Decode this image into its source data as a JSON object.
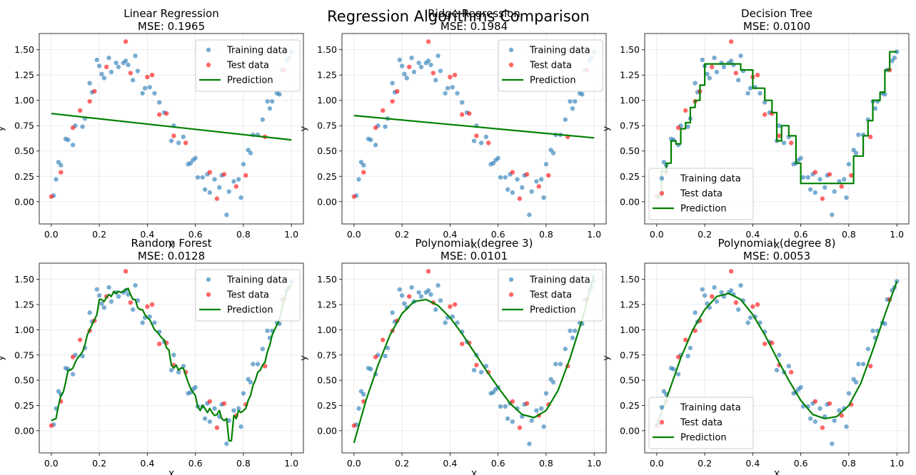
{
  "figure": {
    "suptitle": "Regression Algorithms Comparison"
  },
  "style": {
    "train_color": "#1f77b4",
    "test_color": "#ff0000",
    "pred_color": "#008000",
    "grid_color": "#e6e6e6"
  },
  "legend_labels": [
    "Training data",
    "Test data",
    "Prediction"
  ],
  "chart_data": [
    {
      "type": "scatter",
      "title": "Linear Regression",
      "subtitle": "MSE: 0.1965",
      "xlabel": "X",
      "ylabel": "y",
      "xlim": [
        -0.05,
        1.05
      ],
      "ylim": [
        -0.22,
        1.66
      ],
      "xticks": [
        "0.0",
        "0.2",
        "0.4",
        "0.6",
        "0.8",
        "1.0"
      ],
      "yticks": [
        "0.00",
        "0.25",
        "0.50",
        "0.75",
        "1.00",
        "1.25",
        "1.50"
      ],
      "grid": true,
      "legend": "upper right",
      "model": "linear",
      "prediction": {
        "x": [
          0.0,
          1.0
        ],
        "y": [
          0.87,
          0.61
        ]
      }
    },
    {
      "type": "scatter",
      "title": "Ridge Regression",
      "subtitle": "MSE: 0.1984",
      "xlabel": "X",
      "ylabel": "y",
      "xlim": [
        -0.05,
        1.05
      ],
      "ylim": [
        -0.22,
        1.66
      ],
      "xticks": [
        "0.0",
        "0.2",
        "0.4",
        "0.6",
        "0.8",
        "1.0"
      ],
      "yticks": [
        "0.00",
        "0.25",
        "0.50",
        "0.75",
        "1.00",
        "1.25",
        "1.50"
      ],
      "grid": true,
      "legend": "upper right",
      "model": "linear",
      "prediction": {
        "x": [
          0.0,
          1.0
        ],
        "y": [
          0.85,
          0.63
        ]
      }
    },
    {
      "type": "scatter",
      "title": "Decision Tree",
      "subtitle": "MSE: 0.0100",
      "xlabel": "X",
      "ylabel": "y",
      "xlim": [
        -0.05,
        1.05
      ],
      "ylim": [
        -0.22,
        1.66
      ],
      "xticks": [
        "0.0",
        "0.2",
        "0.4",
        "0.6",
        "0.8",
        "1.0"
      ],
      "yticks": [
        "0.00",
        "0.25",
        "0.50",
        "0.75",
        "1.00",
        "1.25",
        "1.50"
      ],
      "grid": true,
      "legend": "lower left",
      "model": "tree",
      "prediction": {
        "x": [
          0.0,
          0.02,
          0.02,
          0.04,
          0.04,
          0.06,
          0.06,
          0.08,
          0.08,
          0.1,
          0.1,
          0.12,
          0.12,
          0.14,
          0.14,
          0.16,
          0.16,
          0.18,
          0.18,
          0.2,
          0.2,
          0.35,
          0.35,
          0.4,
          0.4,
          0.45,
          0.45,
          0.48,
          0.48,
          0.5,
          0.5,
          0.52,
          0.52,
          0.55,
          0.55,
          0.58,
          0.58,
          0.6,
          0.6,
          0.82,
          0.82,
          0.86,
          0.86,
          0.88,
          0.88,
          0.9,
          0.9,
          0.93,
          0.93,
          0.95,
          0.95,
          0.97,
          0.97,
          1.0
        ],
        "y": [
          0.05,
          0.05,
          0.3,
          0.3,
          0.38,
          0.38,
          0.6,
          0.6,
          0.57,
          0.57,
          0.72,
          0.72,
          0.78,
          0.78,
          0.93,
          0.93,
          1.0,
          1.0,
          1.15,
          1.15,
          1.36,
          1.36,
          1.3,
          1.3,
          1.12,
          1.12,
          1.0,
          1.0,
          0.88,
          0.88,
          0.6,
          0.6,
          0.75,
          0.75,
          0.65,
          0.65,
          0.38,
          0.38,
          0.18,
          0.18,
          0.45,
          0.45,
          0.65,
          0.65,
          0.8,
          0.8,
          1.0,
          1.0,
          1.08,
          1.08,
          1.3,
          1.3,
          1.48,
          1.48
        ]
      }
    },
    {
      "type": "scatter",
      "title": "Random Forest",
      "subtitle": "MSE: 0.0128",
      "xlabel": "X",
      "ylabel": "y",
      "xlim": [
        -0.05,
        1.05
      ],
      "ylim": [
        -0.22,
        1.66
      ],
      "xticks": [
        "0.0",
        "0.2",
        "0.4",
        "0.6",
        "0.8",
        "1.0"
      ],
      "yticks": [
        "0.00",
        "0.25",
        "0.50",
        "0.75",
        "1.00",
        "1.25",
        "1.50"
      ],
      "grid": true,
      "legend": "upper right",
      "model": "forest",
      "prediction": {
        "x": [
          0.0,
          0.02,
          0.03,
          0.04,
          0.05,
          0.06,
          0.07,
          0.08,
          0.09,
          0.1,
          0.11,
          0.12,
          0.13,
          0.14,
          0.15,
          0.16,
          0.17,
          0.18,
          0.19,
          0.2,
          0.21,
          0.22,
          0.23,
          0.24,
          0.25,
          0.26,
          0.27,
          0.28,
          0.29,
          0.3,
          0.31,
          0.32,
          0.33,
          0.34,
          0.35,
          0.36,
          0.37,
          0.38,
          0.39,
          0.4,
          0.41,
          0.42,
          0.43,
          0.44,
          0.45,
          0.46,
          0.47,
          0.48,
          0.49,
          0.5,
          0.51,
          0.52,
          0.53,
          0.54,
          0.55,
          0.56,
          0.57,
          0.58,
          0.59,
          0.6,
          0.61,
          0.62,
          0.63,
          0.64,
          0.65,
          0.66,
          0.67,
          0.68,
          0.69,
          0.7,
          0.71,
          0.72,
          0.73,
          0.74,
          0.75,
          0.76,
          0.77,
          0.78,
          0.79,
          0.8,
          0.81,
          0.82,
          0.83,
          0.84,
          0.85,
          0.86,
          0.87,
          0.88,
          0.89,
          0.9,
          0.91,
          0.92,
          0.93,
          0.94,
          0.95,
          0.96,
          0.97,
          0.98,
          0.99,
          1.0
        ],
        "y": [
          0.1,
          0.12,
          0.25,
          0.35,
          0.38,
          0.48,
          0.6,
          0.6,
          0.62,
          0.68,
          0.72,
          0.75,
          0.78,
          0.85,
          0.95,
          1.0,
          1.05,
          1.1,
          1.15,
          1.3,
          1.3,
          1.28,
          1.32,
          1.35,
          1.33,
          1.38,
          1.36,
          1.38,
          1.37,
          1.38,
          1.4,
          1.41,
          1.35,
          1.3,
          1.3,
          1.22,
          1.2,
          1.2,
          1.15,
          1.12,
          1.1,
          1.05,
          1.0,
          0.98,
          0.95,
          0.92,
          0.9,
          0.82,
          0.8,
          0.65,
          0.62,
          0.65,
          0.6,
          0.62,
          0.62,
          0.55,
          0.48,
          0.42,
          0.38,
          0.35,
          0.24,
          0.2,
          0.25,
          0.22,
          0.18,
          0.22,
          0.18,
          0.15,
          0.16,
          0.2,
          0.12,
          0.1,
          0.12,
          -0.1,
          -0.1,
          0.15,
          0.12,
          0.2,
          0.18,
          0.2,
          0.22,
          0.3,
          0.35,
          0.45,
          0.5,
          0.58,
          0.6,
          0.65,
          0.68,
          0.78,
          0.85,
          0.95,
          1.0,
          1.05,
          1.1,
          1.2,
          1.3,
          1.38,
          1.42,
          1.45
        ]
      }
    },
    {
      "type": "scatter",
      "title": "Polynomial (degree 3)",
      "subtitle": "MSE: 0.0101",
      "xlabel": "X",
      "ylabel": "y",
      "xlim": [
        -0.05,
        1.05
      ],
      "ylim": [
        -0.22,
        1.66
      ],
      "xticks": [
        "0.0",
        "0.2",
        "0.4",
        "0.6",
        "0.8",
        "1.0"
      ],
      "yticks": [
        "0.00",
        "0.25",
        "0.50",
        "0.75",
        "1.00",
        "1.25",
        "1.50"
      ],
      "grid": true,
      "legend": "upper right",
      "model": "poly3",
      "prediction": {
        "x": [
          0.0,
          0.05,
          0.1,
          0.15,
          0.2,
          0.25,
          0.3,
          0.35,
          0.4,
          0.45,
          0.5,
          0.55,
          0.6,
          0.65,
          0.7,
          0.75,
          0.8,
          0.85,
          0.9,
          0.95,
          1.0
        ],
        "y": [
          -0.12,
          0.3,
          0.65,
          0.95,
          1.16,
          1.28,
          1.3,
          1.24,
          1.12,
          0.96,
          0.78,
          0.6,
          0.43,
          0.27,
          0.16,
          0.13,
          0.2,
          0.4,
          0.72,
          1.1,
          1.55
        ]
      }
    },
    {
      "type": "scatter",
      "title": "Polynomial (degree 8)",
      "subtitle": "MSE: 0.0053",
      "xlabel": "X",
      "ylabel": "y",
      "xlim": [
        -0.05,
        1.05
      ],
      "ylim": [
        -0.22,
        1.66
      ],
      "xticks": [
        "0.0",
        "0.2",
        "0.4",
        "0.6",
        "0.8",
        "1.0"
      ],
      "yticks": [
        "0.00",
        "0.25",
        "0.50",
        "0.75",
        "1.00",
        "1.25",
        "1.50"
      ],
      "grid": true,
      "legend": "lower left",
      "model": "poly8",
      "prediction": {
        "x": [
          0.0,
          0.05,
          0.1,
          0.15,
          0.2,
          0.25,
          0.3,
          0.35,
          0.4,
          0.45,
          0.5,
          0.55,
          0.6,
          0.65,
          0.7,
          0.75,
          0.8,
          0.85,
          0.9,
          0.95,
          1.0
        ],
        "y": [
          0.05,
          0.38,
          0.72,
          1.0,
          1.2,
          1.33,
          1.36,
          1.3,
          1.15,
          0.95,
          0.72,
          0.5,
          0.3,
          0.16,
          0.12,
          0.14,
          0.25,
          0.47,
          0.8,
          1.15,
          1.48
        ]
      }
    }
  ],
  "train_data": {
    "x": [
      0.01,
      0.02,
      0.03,
      0.04,
      0.06,
      0.07,
      0.09,
      0.1,
      0.13,
      0.14,
      0.16,
      0.17,
      0.19,
      0.2,
      0.21,
      0.22,
      0.24,
      0.25,
      0.27,
      0.28,
      0.3,
      0.31,
      0.32,
      0.34,
      0.35,
      0.36,
      0.38,
      0.39,
      0.41,
      0.43,
      0.45,
      0.47,
      0.5,
      0.51,
      0.53,
      0.55,
      0.57,
      0.58,
      0.59,
      0.6,
      0.61,
      0.63,
      0.64,
      0.65,
      0.66,
      0.68,
      0.7,
      0.71,
      0.73,
      0.74,
      0.76,
      0.78,
      0.79,
      0.8,
      0.82,
      0.83,
      0.84,
      0.86,
      0.88,
      0.9,
      0.91,
      0.92,
      0.94,
      0.95,
      0.96,
      0.98,
      0.99,
      1.0
    ],
    "y": [
      0.06,
      0.22,
      0.39,
      0.36,
      0.62,
      0.61,
      0.56,
      0.75,
      0.74,
      0.82,
      1.17,
      1.08,
      1.4,
      1.34,
      1.26,
      1.22,
      1.42,
      1.28,
      1.37,
      1.33,
      1.37,
      1.39,
      1.35,
      1.2,
      1.44,
      1.29,
      1.07,
      1.12,
      1.13,
      1.07,
      0.98,
      0.88,
      0.6,
      0.75,
      0.58,
      0.64,
      0.37,
      0.38,
      0.41,
      0.43,
      0.24,
      0.24,
      0.12,
      0.27,
      0.09,
      0.22,
      0.14,
      0.26,
      -0.13,
      0.1,
      0.2,
      0.22,
      0.04,
      0.37,
      0.51,
      0.48,
      0.66,
      0.66,
      0.81,
      0.99,
      0.92,
      0.99,
      1.07,
      1.06,
      1.3,
      1.39,
      1.42,
      1.48
    ]
  },
  "test_data": {
    "x": [
      0.0,
      0.04,
      0.09,
      0.12,
      0.16,
      0.18,
      0.23,
      0.31,
      0.33,
      0.4,
      0.42,
      0.45,
      0.48,
      0.51,
      0.56,
      0.66,
      0.69,
      0.72,
      0.77,
      0.81,
      0.89,
      0.97
    ],
    "y": [
      0.05,
      0.29,
      0.73,
      0.9,
      0.99,
      1.09,
      1.33,
      1.58,
      1.27,
      1.23,
      1.25,
      0.86,
      0.87,
      0.65,
      0.58,
      0.29,
      0.03,
      0.27,
      0.15,
      0.26,
      0.64,
      1.3
    ]
  }
}
